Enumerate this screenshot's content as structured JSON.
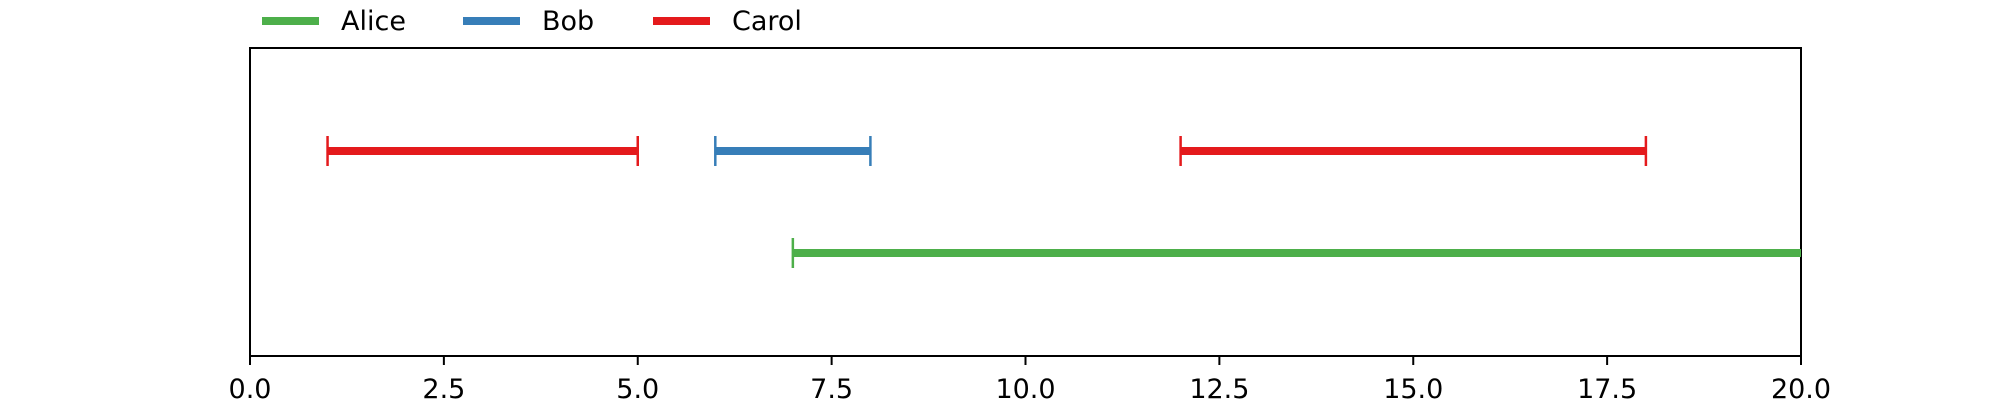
{
  "chart_data": {
    "type": "timeline",
    "legend_position": "top-center",
    "grid": false,
    "xlim": [
      0,
      20
    ],
    "x_ticks": [
      0.0,
      2.5,
      5.0,
      7.5,
      10.0,
      12.5,
      15.0,
      17.5,
      20.0
    ],
    "x_tick_labels": [
      "0.0",
      "2.5",
      "5.0",
      "7.5",
      "10.0",
      "12.5",
      "15.0",
      "17.5",
      "20.0"
    ],
    "rows": 2,
    "series": [
      {
        "name": "Alice",
        "color": "#4daf4a"
      },
      {
        "name": "Bob",
        "color": "#377eb8"
      },
      {
        "name": "Carol",
        "color": "#e41a1c"
      }
    ],
    "intervals": [
      {
        "series": "Carol",
        "row": 0,
        "start": 1.0,
        "end": 5.0,
        "start_cap": true,
        "end_cap": true
      },
      {
        "series": "Bob",
        "row": 0,
        "start": 6.0,
        "end": 8.0,
        "start_cap": true,
        "end_cap": true
      },
      {
        "series": "Carol",
        "row": 0,
        "start": 12.0,
        "end": 18.0,
        "start_cap": true,
        "end_cap": true
      },
      {
        "series": "Alice",
        "row": 1,
        "start": 7.0,
        "end": 20.0,
        "start_cap": true,
        "end_cap": false
      }
    ]
  }
}
